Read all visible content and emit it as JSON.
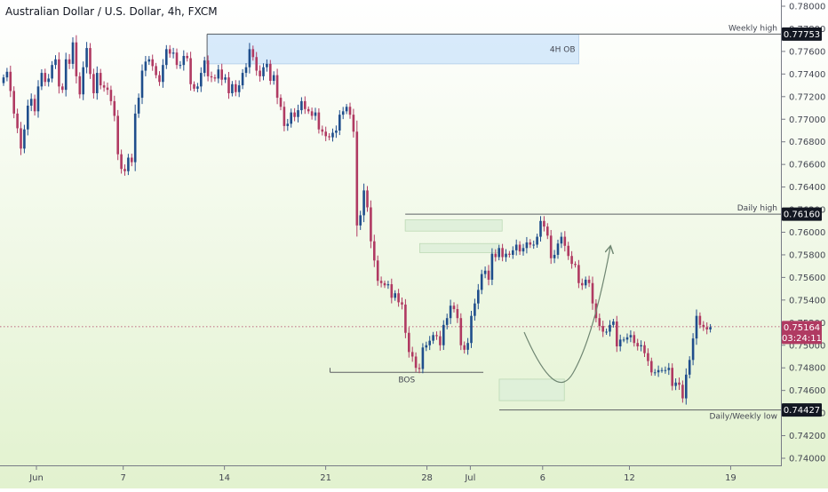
{
  "chart_data": {
    "type": "candlestick",
    "title": "Australian Dollar / U.S. Dollar, 4h, FXCM",
    "colors": {
      "up": "#1f4e8c",
      "down": "#b03a62",
      "bg_top": "#ffffff",
      "bg_bottom": "#e2f2cf",
      "zone_blue": "#d4e8fb",
      "zone_green": "#dff0da",
      "badge": "#131722",
      "price_badge": "#b03a62"
    },
    "y_ticks": [
      "0.78000",
      "0.77800",
      "0.77600",
      "0.77400",
      "0.77200",
      "0.77000",
      "0.76800",
      "0.76600",
      "0.76400",
      "0.76200",
      "0.76000",
      "0.75800",
      "0.75600",
      "0.75400",
      "0.75200",
      "0.75000",
      "0.74800",
      "0.74600",
      "0.74400",
      "0.74200",
      "0.74000"
    ],
    "x_ticks": [
      {
        "day": 0,
        "label": "Jun"
      },
      {
        "day": 6,
        "label": "7"
      },
      {
        "day": 13,
        "label": "14"
      },
      {
        "day": 20,
        "label": "21"
      },
      {
        "day": 27,
        "label": "28"
      },
      {
        "day": 30,
        "label": "Jul"
      },
      {
        "day": 35,
        "label": "6"
      },
      {
        "day": 41,
        "label": "12"
      },
      {
        "day": 48,
        "label": "19"
      }
    ],
    "levels": [
      {
        "label": "Weekly high",
        "price": 0.77753,
        "badge": "0.77753"
      },
      {
        "label": "Daily high",
        "price": 0.7616,
        "badge": "0.76160"
      },
      {
        "label": "Daily/Weekly low",
        "price": 0.74427,
        "badge": "0.74427"
      }
    ],
    "current_price": {
      "badge": "0.75164",
      "timer": "03:24:11",
      "price": 0.75164
    },
    "zones": [
      {
        "label": "4H OB",
        "from_day": 11.8,
        "to_day": 37.5,
        "high": 0.7775,
        "low": 0.7749,
        "color": "blue"
      },
      {
        "label": "",
        "from_day": 25.5,
        "to_day": 32.2,
        "high": 0.7611,
        "low": 0.7601,
        "color": "green"
      },
      {
        "label": "",
        "from_day": 26.5,
        "to_day": 32.0,
        "high": 0.759,
        "low": 0.7582,
        "color": "green"
      },
      {
        "label": "",
        "from_day": 32.0,
        "to_day": 36.5,
        "high": 0.747,
        "low": 0.7451,
        "color": "green"
      }
    ],
    "bos": {
      "label": "BOS",
      "from_day": 20.3,
      "to_day": 30.9,
      "price": 0.7476
    },
    "candles_close": [
      0.7737,
      0.7742,
      0.7725,
      0.7705,
      0.7692,
      0.7674,
      0.7691,
      0.7712,
      0.7718,
      0.7707,
      0.7729,
      0.7741,
      0.7733,
      0.7736,
      0.7748,
      0.7753,
      0.7729,
      0.7726,
      0.7753,
      0.7749,
      0.7768,
      0.7738,
      0.7722,
      0.7746,
      0.7763,
      0.774,
      0.7723,
      0.7741,
      0.773,
      0.7728,
      0.7726,
      0.7716,
      0.7703,
      0.7669,
      0.7656,
      0.7654,
      0.7666,
      0.7662,
      0.7705,
      0.7719,
      0.7743,
      0.7751,
      0.7753,
      0.7747,
      0.7739,
      0.7733,
      0.7748,
      0.7762,
      0.7758,
      0.7759,
      0.7748,
      0.7748,
      0.7756,
      0.7754,
      0.7731,
      0.7727,
      0.7729,
      0.7741,
      0.7752,
      0.7738,
      0.7737,
      0.7736,
      0.7744,
      0.7735,
      0.7737,
      0.7723,
      0.7731,
      0.7724,
      0.773,
      0.7741,
      0.7746,
      0.7762,
      0.7755,
      0.7743,
      0.7738,
      0.7746,
      0.7749,
      0.7734,
      0.7739,
      0.7719,
      0.7711,
      0.7694,
      0.7696,
      0.7706,
      0.7702,
      0.7708,
      0.7716,
      0.7709,
      0.7707,
      0.7703,
      0.7706,
      0.7691,
      0.7689,
      0.7685,
      0.7684,
      0.7688,
      0.769,
      0.7704,
      0.7707,
      0.7711,
      0.7704,
      0.7689,
      0.7606,
      0.7615,
      0.7637,
      0.7622,
      0.7592,
      0.7575,
      0.7557,
      0.7555,
      0.7553,
      0.7554,
      0.7542,
      0.7546,
      0.7538,
      0.7536,
      0.7511,
      0.7494,
      0.749,
      0.748,
      0.7479,
      0.7498,
      0.75,
      0.7504,
      0.7509,
      0.7508,
      0.75,
      0.7518,
      0.7524,
      0.7535,
      0.7532,
      0.7524,
      0.75,
      0.7496,
      0.7502,
      0.7526,
      0.7537,
      0.7549,
      0.7563,
      0.7566,
      0.7558,
      0.7581,
      0.7578,
      0.7586,
      0.7578,
      0.7581,
      0.758,
      0.7584,
      0.7589,
      0.7583,
      0.7586,
      0.7591,
      0.7589,
      0.7589,
      0.7596,
      0.761,
      0.7605,
      0.7597,
      0.7577,
      0.758,
      0.759,
      0.7596,
      0.7588,
      0.7579,
      0.7572,
      0.7571,
      0.7555,
      0.7553,
      0.7558,
      0.7555,
      0.7537,
      0.7524,
      0.7517,
      0.7512,
      0.7512,
      0.7518,
      0.7521,
      0.7499,
      0.7505,
      0.7505,
      0.7507,
      0.7509,
      0.7502,
      0.7499,
      0.75,
      0.7493,
      0.7486,
      0.7476,
      0.7476,
      0.7478,
      0.7478,
      0.7478,
      0.748,
      0.7464,
      0.7467,
      0.7465,
      0.7453,
      0.7474,
      0.7487,
      0.7506,
      0.7526,
      0.7518,
      0.7516,
      0.7514,
      0.7516
    ]
  },
  "chart_layout_note": ""
}
